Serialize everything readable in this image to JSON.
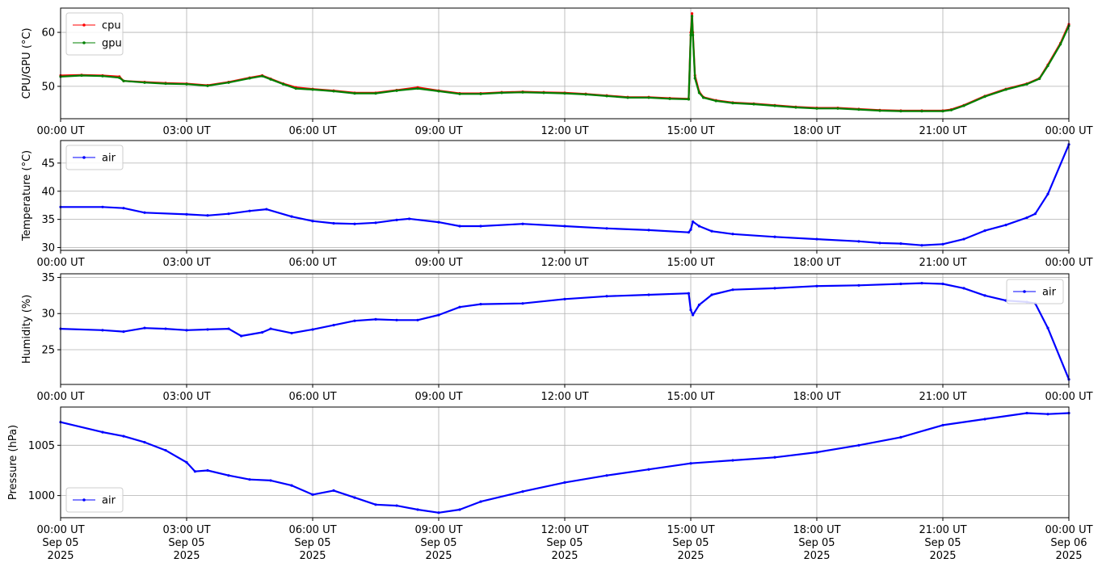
{
  "chart_data": [
    {
      "type": "line",
      "ylabel": "CPU/GPU (°C)",
      "ylim": [
        44,
        64.5
      ],
      "yticks": [
        50,
        60
      ],
      "xticks": [
        "00:00 UT",
        "03:00 UT",
        "06:00 UT",
        "09:00 UT",
        "12:00 UT",
        "15:00 UT",
        "18:00 UT",
        "21:00 UT",
        "00:00 UT"
      ],
      "grid": true,
      "legend_position": "upper-left",
      "series": [
        {
          "name": "cpu",
          "color": "#ff0000",
          "x": [
            0,
            0.5,
            1,
            1.4,
            1.5,
            2,
            2.5,
            3,
            3.5,
            4,
            4.5,
            4.8,
            5,
            5.3,
            5.6,
            6,
            6.5,
            7,
            7.5,
            8,
            8.5,
            9,
            9.5,
            10,
            10.5,
            11,
            11.5,
            12,
            12.5,
            13,
            13.5,
            14,
            14.5,
            14.95,
            15,
            15.03,
            15.05,
            15.1,
            15.2,
            15.3,
            15.6,
            16,
            16.5,
            17,
            17.5,
            18,
            18.5,
            19,
            19.5,
            20,
            20.5,
            21,
            21.2,
            21.5,
            22,
            22.5,
            23,
            23.3,
            23.5,
            23.8,
            24
          ],
          "y": [
            52,
            52.1,
            52,
            51.8,
            51,
            50.8,
            50.6,
            50.5,
            50.2,
            50.8,
            51.6,
            52,
            51.4,
            50.5,
            49.8,
            49.5,
            49.2,
            48.8,
            48.8,
            49.3,
            49.8,
            49.2,
            48.7,
            48.7,
            48.9,
            49,
            48.9,
            48.8,
            48.6,
            48.3,
            48,
            48,
            47.8,
            47.7,
            60,
            63.5,
            60,
            52,
            49,
            48,
            47.4,
            47,
            46.8,
            46.5,
            46.2,
            46,
            46,
            45.8,
            45.6,
            45.5,
            45.5,
            45.5,
            45.7,
            46.5,
            48.2,
            49.5,
            50.5,
            51.5,
            54,
            58,
            61.5
          ]
        },
        {
          "name": "gpu",
          "color": "#008000",
          "x": [
            0,
            0.5,
            1,
            1.4,
            1.5,
            2,
            2.5,
            3,
            3.5,
            4,
            4.5,
            4.8,
            5,
            5.3,
            5.6,
            6,
            6.5,
            7,
            7.5,
            8,
            8.5,
            9,
            9.5,
            10,
            10.5,
            11,
            11.5,
            12,
            12.5,
            13,
            13.5,
            14,
            14.5,
            14.95,
            15,
            15.03,
            15.05,
            15.1,
            15.2,
            15.3,
            15.6,
            16,
            16.5,
            17,
            17.5,
            18,
            18.5,
            19,
            19.5,
            20,
            20.5,
            21,
            21.2,
            21.5,
            22,
            22.5,
            23,
            23.3,
            23.5,
            23.8,
            24
          ],
          "y": [
            51.8,
            52,
            51.9,
            51.6,
            51,
            50.7,
            50.5,
            50.4,
            50.1,
            50.7,
            51.5,
            51.9,
            51.3,
            50.4,
            49.6,
            49.4,
            49.1,
            48.7,
            48.7,
            49.2,
            49.6,
            49.1,
            48.6,
            48.6,
            48.8,
            48.9,
            48.8,
            48.7,
            48.5,
            48.2,
            47.9,
            47.9,
            47.7,
            47.6,
            59.5,
            63,
            59.5,
            51.5,
            48.8,
            47.9,
            47.3,
            46.9,
            46.7,
            46.4,
            46.1,
            45.9,
            45.9,
            45.7,
            45.5,
            45.4,
            45.4,
            45.4,
            45.6,
            46.4,
            48.1,
            49.4,
            50.4,
            51.4,
            53.8,
            57.8,
            61.2
          ]
        }
      ]
    },
    {
      "type": "line",
      "ylabel": "Temperature (°C)",
      "ylim": [
        29.5,
        49
      ],
      "yticks": [
        30,
        35,
        40,
        45
      ],
      "xticks": [
        "00:00 UT",
        "03:00 UT",
        "06:00 UT",
        "09:00 UT",
        "12:00 UT",
        "15:00 UT",
        "18:00 UT",
        "21:00 UT",
        "00:00 UT"
      ],
      "grid": true,
      "legend_position": "upper-left",
      "series": [
        {
          "name": "air",
          "color": "#0000ff",
          "x": [
            0,
            1,
            1.5,
            2,
            3,
            3.5,
            4,
            4.5,
            4.9,
            5.5,
            6,
            6.5,
            7,
            7.5,
            8,
            8.3,
            9,
            9.5,
            10,
            11,
            12,
            13,
            14,
            14.95,
            15,
            15.05,
            15.2,
            15.5,
            16,
            17,
            18,
            19,
            19.5,
            20,
            20.5,
            21,
            21.5,
            22,
            22.5,
            23,
            23.2,
            23.5,
            24
          ],
          "y": [
            37.2,
            37.2,
            37,
            36.2,
            35.9,
            35.7,
            36,
            36.5,
            36.8,
            35.5,
            34.7,
            34.3,
            34.2,
            34.4,
            34.9,
            35.1,
            34.5,
            33.8,
            33.8,
            34.2,
            33.8,
            33.4,
            33.1,
            32.7,
            33.2,
            34.6,
            33.8,
            32.9,
            32.4,
            31.9,
            31.5,
            31.1,
            30.8,
            30.7,
            30.4,
            30.6,
            31.5,
            33,
            34,
            35.3,
            36,
            39.5,
            48.3
          ]
        }
      ]
    },
    {
      "type": "line",
      "ylabel": "Humidity (%)",
      "ylim": [
        20.2,
        35.5
      ],
      "yticks": [
        25,
        30,
        35
      ],
      "xticks": [
        "00:00 UT",
        "03:00 UT",
        "06:00 UT",
        "09:00 UT",
        "12:00 UT",
        "15:00 UT",
        "18:00 UT",
        "21:00 UT",
        "00:00 UT"
      ],
      "grid": true,
      "legend_position": "upper-right",
      "series": [
        {
          "name": "air",
          "color": "#0000ff",
          "x": [
            0,
            1,
            1.5,
            2,
            2.5,
            3,
            3.5,
            4,
            4.3,
            4.8,
            5,
            5.5,
            6,
            6.5,
            7,
            7.5,
            8,
            8.5,
            9,
            9.5,
            10,
            11,
            12,
            13,
            14,
            14.95,
            15,
            15.05,
            15.2,
            15.5,
            16,
            17,
            18,
            19,
            20,
            20.5,
            21,
            21.5,
            22,
            22.5,
            23,
            23.2,
            23.5,
            24
          ],
          "y": [
            27.9,
            27.7,
            27.5,
            28,
            27.9,
            27.7,
            27.8,
            27.9,
            26.9,
            27.4,
            27.9,
            27.3,
            27.8,
            28.4,
            29,
            29.2,
            29.1,
            29.1,
            29.8,
            30.9,
            31.3,
            31.4,
            32,
            32.4,
            32.6,
            32.8,
            30.5,
            29.8,
            31.2,
            32.6,
            33.3,
            33.5,
            33.8,
            33.9,
            34.1,
            34.2,
            34.1,
            33.5,
            32.5,
            31.8,
            31.6,
            31.4,
            28,
            20.9
          ]
        }
      ]
    },
    {
      "type": "line",
      "ylabel": "Pressure (hPa)",
      "ylim": [
        997.8,
        1008.8
      ],
      "yticks": [
        1000,
        1005
      ],
      "xticks": [
        "00:00 UT\nSep 05\n2025",
        "03:00 UT\nSep 05\n2025",
        "06:00 UT\nSep 05\n2025",
        "09:00 UT\nSep 05\n2025",
        "12:00 UT\nSep 05\n2025",
        "15:00 UT\nSep 05\n2025",
        "18:00 UT\nSep 05\n2025",
        "21:00 UT\nSep 05\n2025",
        "00:00 UT\nSep 06\n2025"
      ],
      "grid": true,
      "legend_position": "lower-left",
      "series": [
        {
          "name": "air",
          "color": "#0000ff",
          "x": [
            0,
            1,
            1.5,
            2,
            2.5,
            3,
            3.2,
            3.5,
            4,
            4.5,
            5,
            5.5,
            6,
            6.5,
            7,
            7.5,
            8,
            8.5,
            9,
            9.5,
            10,
            11,
            12,
            13,
            14,
            15,
            16,
            17,
            18,
            19,
            20,
            21,
            22,
            23,
            23.5,
            24
          ],
          "y": [
            1007.3,
            1006.3,
            1005.9,
            1005.3,
            1004.5,
            1003.3,
            1002.4,
            1002.5,
            1002,
            1001.6,
            1001.5,
            1001,
            1000.1,
            1000.5,
            999.8,
            999.1,
            999,
            998.6,
            998.3,
            998.6,
            999.4,
            1000.4,
            1001.3,
            1002,
            1002.6,
            1003.2,
            1003.5,
            1003.8,
            1004.3,
            1005,
            1005.8,
            1007,
            1007.6,
            1008.2,
            1008.1,
            1008.2
          ]
        }
      ]
    }
  ]
}
